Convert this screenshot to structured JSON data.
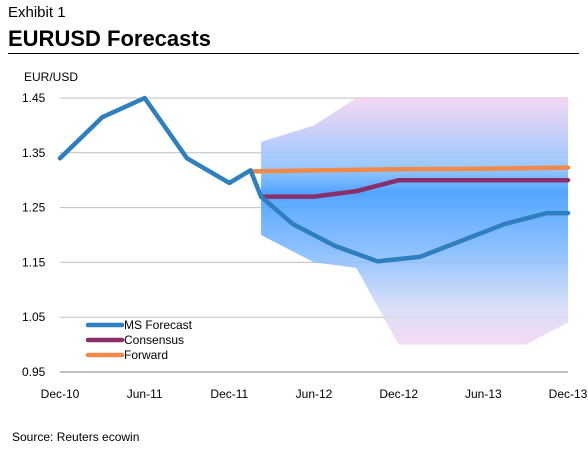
{
  "header": {
    "exhibit": "Exhibit 1",
    "title": "EURUSD Forecasts"
  },
  "footer": {
    "source": "Source:  Reuters ecowin"
  },
  "colors": {
    "ms_forecast": "#2e7fbf",
    "consensus": "#8b2f6b",
    "forward": "#f08a4b",
    "band_blue": "#4a9eff",
    "band_pink": "#f2c6ee",
    "grid": "#bfbfbf"
  },
  "chart_data": {
    "type": "line",
    "ylabel": "EUR/USD",
    "xlabel": "",
    "ylim": [
      0.95,
      1.45
    ],
    "yticks": [
      "1.45",
      "1.35",
      "1.25",
      "1.15",
      "1.05",
      "0.95"
    ],
    "ytick_values": [
      1.45,
      1.35,
      1.25,
      1.15,
      1.05,
      0.95
    ],
    "x_tick_labels": [
      "Dec-10",
      "Jun-11",
      "Dec-11",
      "Jun-12",
      "Dec-12",
      "Jun-13",
      "Dec-13"
    ],
    "x_range": [
      0,
      12
    ],
    "grid": true,
    "legend_position": "bottom-left",
    "series": [
      {
        "name": "MS Forecast",
        "color_key": "ms_forecast",
        "x": [
          0,
          1,
          2,
          3,
          4,
          4.5,
          4.75,
          5.5,
          6.5,
          7.5,
          8.5,
          9.5,
          10.5,
          11.5,
          12
        ],
        "y": [
          1.34,
          1.415,
          1.45,
          1.34,
          1.295,
          1.318,
          1.27,
          1.22,
          1.18,
          1.152,
          1.16,
          1.19,
          1.22,
          1.24,
          1.24
        ]
      },
      {
        "name": "Consensus",
        "color_key": "consensus",
        "x": [
          4.75,
          6,
          7,
          8,
          9,
          10,
          11,
          12
        ],
        "y": [
          1.27,
          1.27,
          1.28,
          1.3,
          1.3,
          1.3,
          1.3,
          1.3
        ]
      },
      {
        "name": "Forward",
        "color_key": "forward",
        "x": [
          4.5,
          6,
          8,
          10,
          12
        ],
        "y": [
          1.316,
          1.318,
          1.32,
          1.321,
          1.323
        ]
      }
    ],
    "confidence_band": {
      "x": [
        4.75,
        6,
        7,
        8,
        9,
        10,
        11,
        12
      ],
      "upper": [
        1.37,
        1.4,
        1.45,
        1.45,
        1.45,
        1.45,
        1.45,
        1.45
      ],
      "lower": [
        1.2,
        1.15,
        1.14,
        1.0,
        1.0,
        1.0,
        1.0,
        1.04
      ]
    }
  }
}
